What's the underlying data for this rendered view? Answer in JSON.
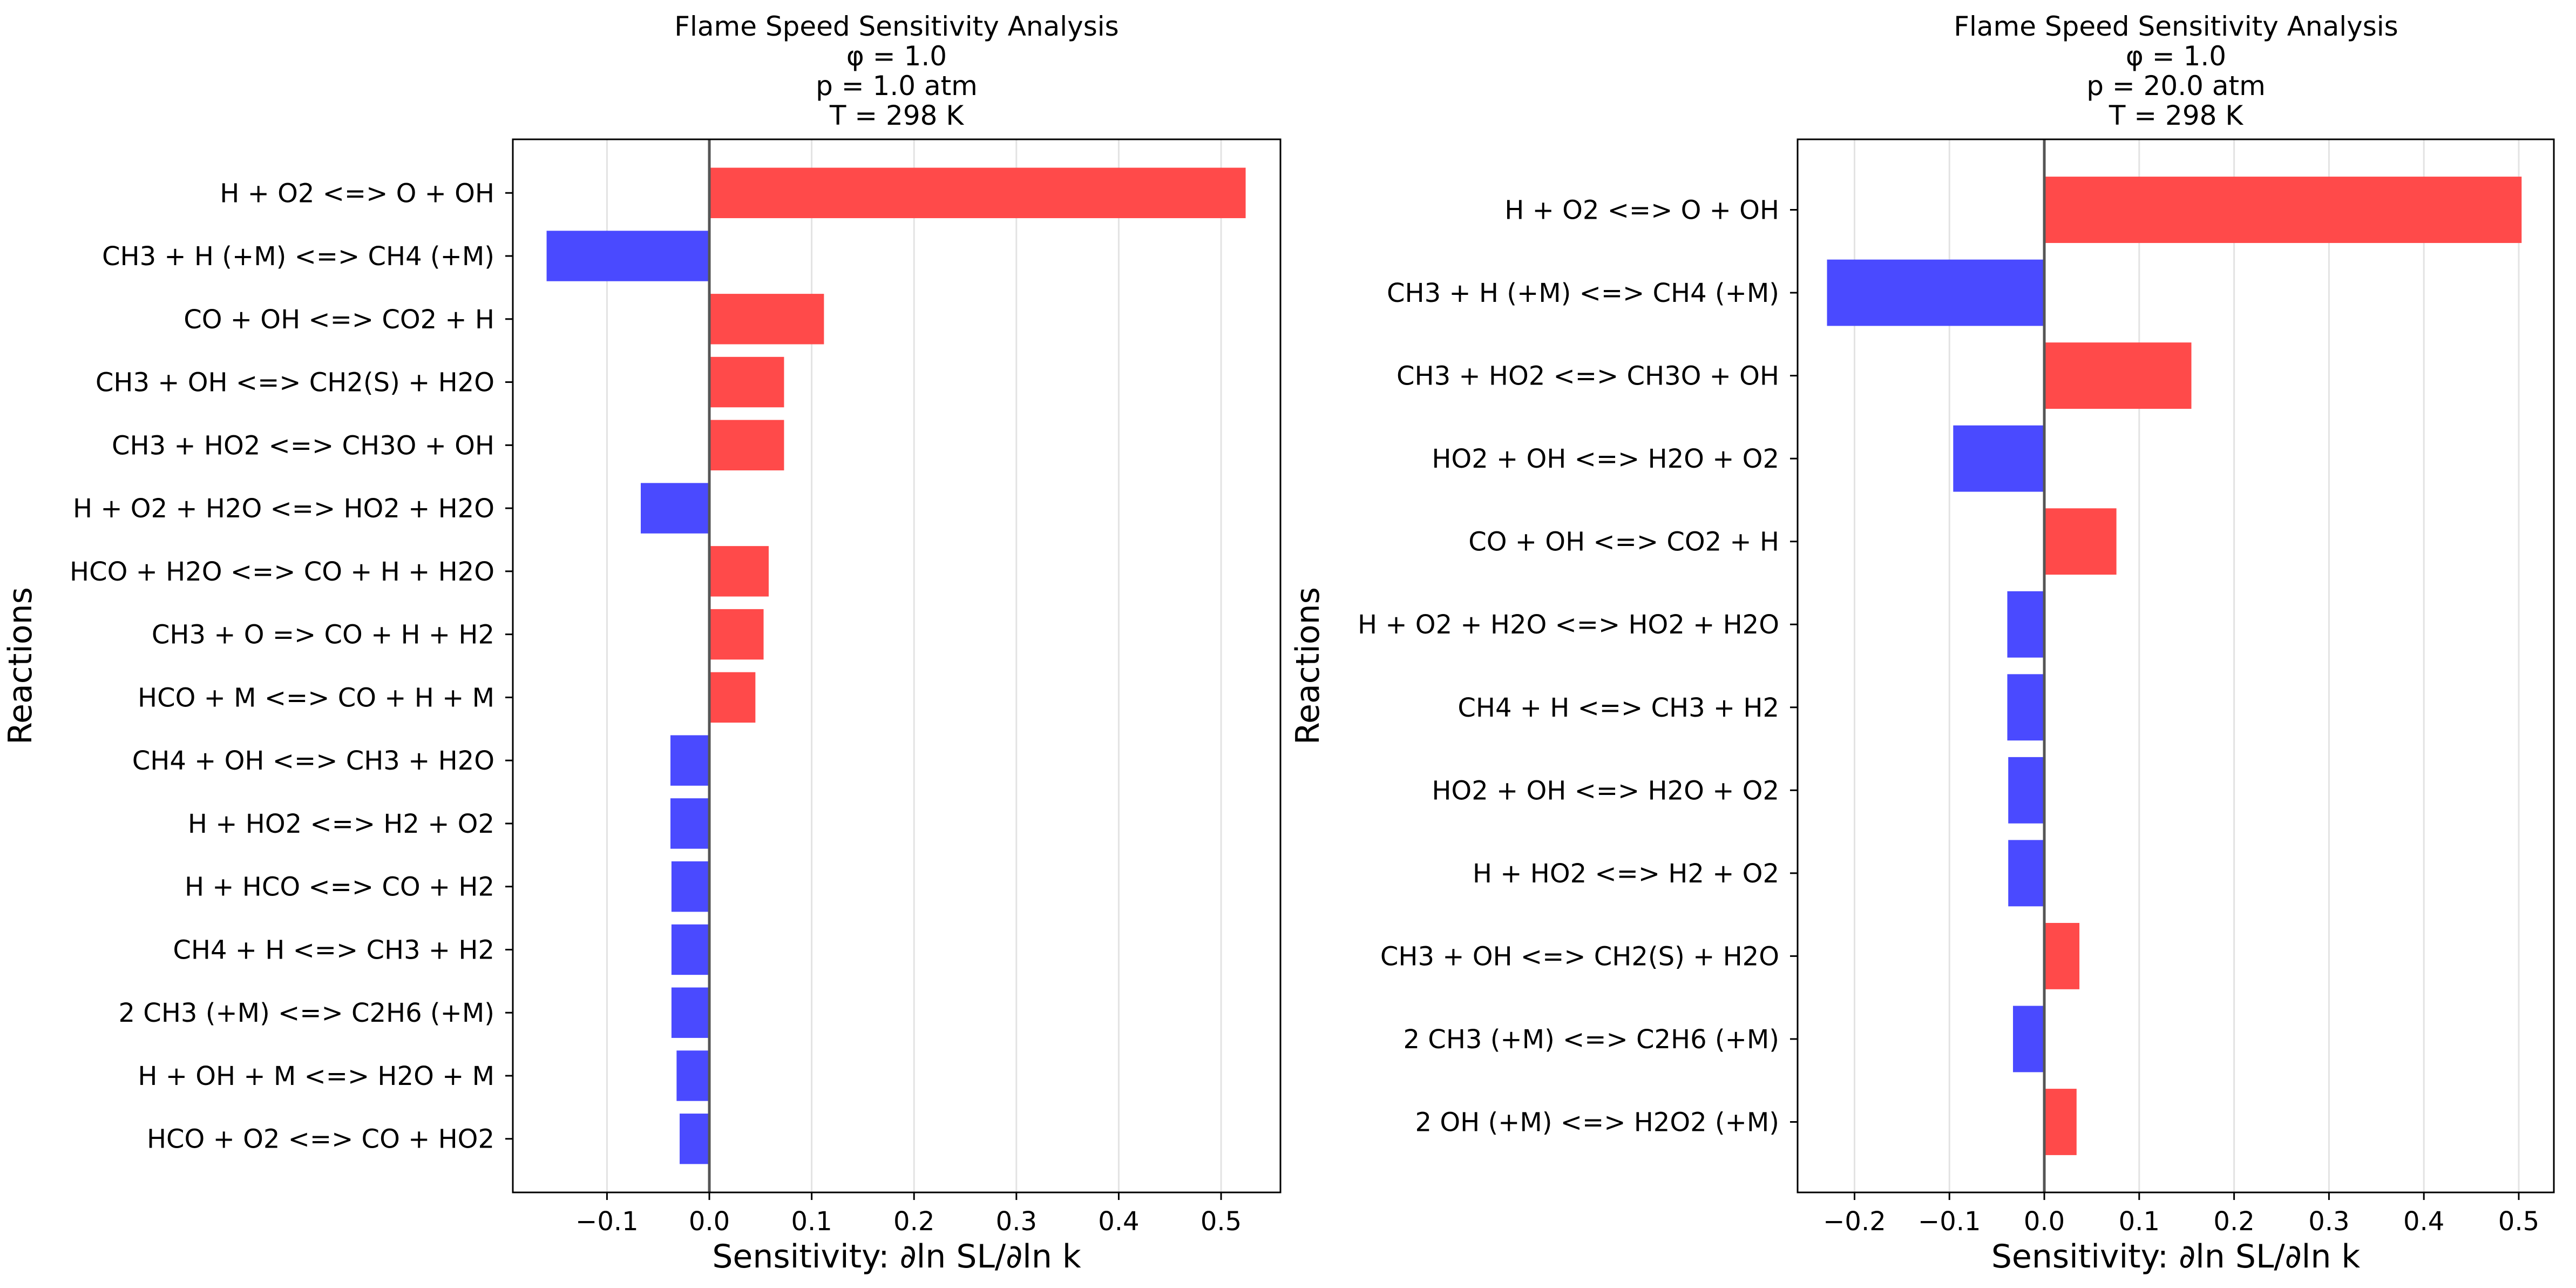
{
  "chart_data": [
    {
      "type": "bar",
      "orientation": "horizontal",
      "title_lines": [
        "Flame Speed Sensitivity Analysis",
        "φ = 1.0",
        "p = 1.0 atm",
        "T = 298 K"
      ],
      "xlabel": "Sensitivity: ∂ln SL/∂ln k",
      "ylabel": "Reactions",
      "xlim": [
        -0.192,
        0.558
      ],
      "xticks": [
        -0.1,
        0.0,
        0.1,
        0.2,
        0.3,
        0.4,
        0.5
      ],
      "xtick_labels": [
        "−0.1",
        "0.0",
        "0.1",
        "0.2",
        "0.3",
        "0.4",
        "0.5"
      ],
      "grid": "vertical",
      "positive_color": "#ff4a4a",
      "negative_color": "#4a4aff",
      "zero_line_color": "#555555",
      "categories": [
        "H + O2 <=> O + OH",
        "CH3 + H (+M) <=> CH4 (+M)",
        "CO + OH <=> CO2 + H",
        "CH3 + OH <=> CH2(S) + H2O",
        "CH3 + HO2 <=> CH3O + OH",
        "H + O2 + H2O <=> HO2 + H2O",
        "HCO + H2O <=> CO + H + H2O",
        "CH3 + O => CO + H + H2",
        "HCO + M <=> CO + H + M",
        "CH4 + OH <=> CH3 + H2O",
        "H + HO2 <=> H2 + O2",
        "H + HCO <=> CO + H2",
        "CH4 + H <=> CH3 + H2",
        "2 CH3 (+M) <=> C2H6 (+M)",
        "H + OH + M <=> H2O + M",
        "HCO + O2 <=> CO + HO2"
      ],
      "values": [
        0.524,
        -0.159,
        0.112,
        0.073,
        0.073,
        -0.067,
        0.058,
        0.053,
        0.045,
        -0.038,
        -0.038,
        -0.037,
        -0.037,
        -0.037,
        -0.032,
        -0.029
      ]
    },
    {
      "type": "bar",
      "orientation": "horizontal",
      "title_lines": [
        "Flame Speed Sensitivity Analysis",
        "φ = 1.0",
        "p = 20.0 atm",
        "T = 298 K"
      ],
      "xlabel": "Sensitivity: ∂ln SL/∂ln k",
      "ylabel": "Reactions",
      "xlim": [
        -0.26,
        0.537
      ],
      "xticks": [
        -0.2,
        -0.1,
        0.0,
        0.1,
        0.2,
        0.3,
        0.4,
        0.5
      ],
      "xtick_labels": [
        "−0.2",
        "−0.1",
        "0.0",
        "0.1",
        "0.2",
        "0.3",
        "0.4",
        "0.5"
      ],
      "grid": "vertical",
      "positive_color": "#ff4a4a",
      "negative_color": "#4a4aff",
      "zero_line_color": "#555555",
      "categories": [
        "H + O2 <=> O + OH",
        "CH3 + H (+M) <=> CH4 (+M)",
        "CH3 + HO2 <=> CH3O + OH",
        "HO2 + OH <=> H2O + O2",
        "CO + OH <=> CO2 + H",
        "H + O2 + H2O <=> HO2 + H2O",
        "CH4 + H <=> CH3 + H2",
        "HO2 + OH <=> H2O + O2",
        "H + HO2 <=> H2 + O2",
        "CH3 + OH <=> CH2(S) + H2O",
        "2 CH3 (+M) <=> C2H6 (+M)",
        "2 OH (+M) <=> H2O2 (+M)"
      ],
      "values": [
        0.503,
        -0.229,
        0.155,
        -0.096,
        0.076,
        -0.039,
        -0.039,
        -0.038,
        -0.038,
        0.037,
        -0.033,
        0.034
      ]
    }
  ]
}
